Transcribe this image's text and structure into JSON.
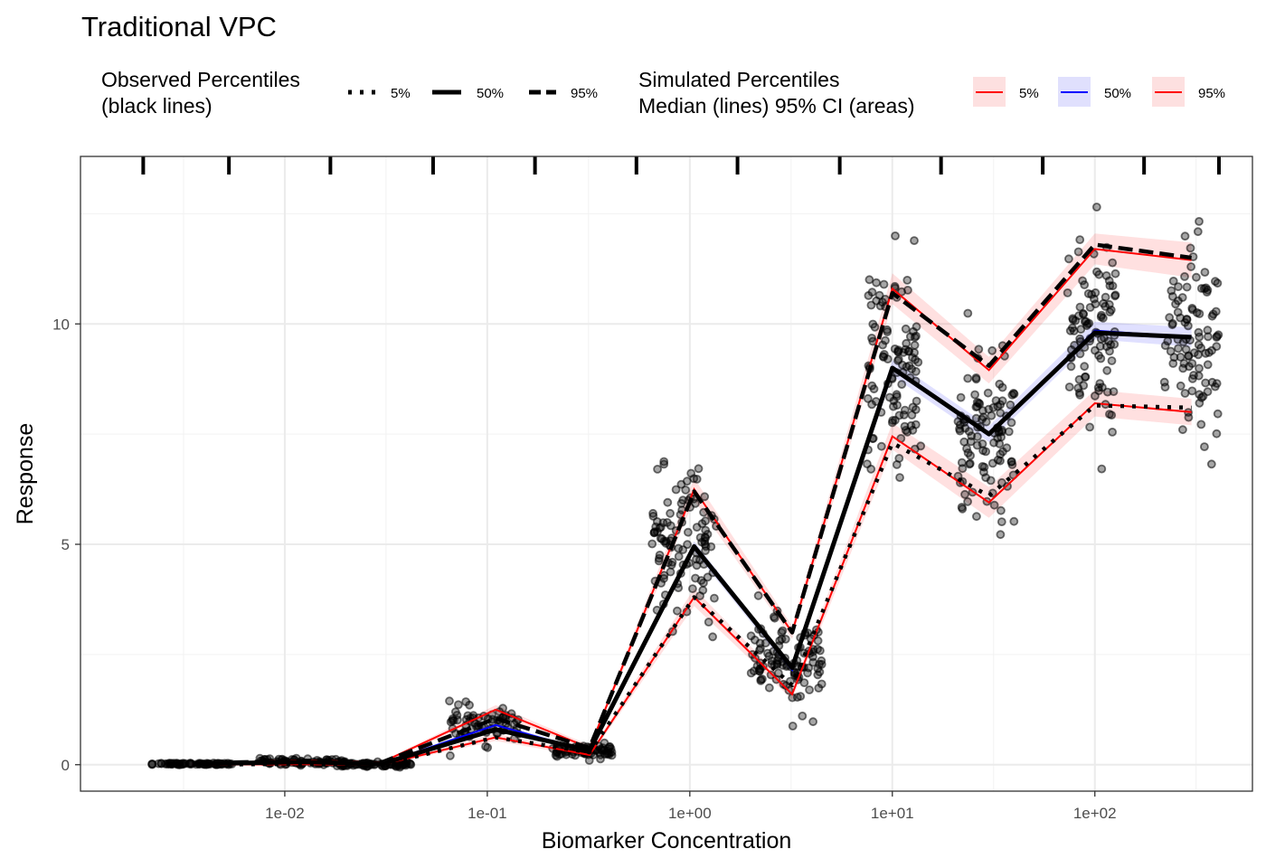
{
  "title": "Traditional VPC",
  "legend": {
    "observed": {
      "title_line1": "Observed Percentiles",
      "title_line2": "(black lines)",
      "keys": [
        "5%",
        "50%",
        "95%"
      ]
    },
    "simulated": {
      "title_line1": "Simulated Percentiles",
      "title_line2": "Median (lines) 95% CI (areas)",
      "keys": [
        "5%",
        "50%",
        "95%"
      ],
      "line_colors": [
        "#ff0000",
        "#0000ff",
        "#ff0000"
      ],
      "fill_colors": [
        "#fde0e0",
        "#e0e0fd",
        "#fde0e0"
      ]
    }
  },
  "chart_data": {
    "type": "line",
    "x_scale": "log10",
    "xlabel": "Biomarker Concentration",
    "ylabel": "Response",
    "x_ticks": [
      0.01,
      0.1,
      1,
      10,
      100
    ],
    "x_tick_labels": [
      "1e-02",
      "1e-01",
      "1e+00",
      "1e+01",
      "1e+02"
    ],
    "y_ticks": [
      0,
      5,
      10
    ],
    "y_tick_labels": [
      "0",
      "5",
      "10"
    ],
    "xlim": [
      0.00098,
      600
    ],
    "ylim": [
      -0.6,
      13.8
    ],
    "grid": true,
    "bin_boundaries": [
      0.002,
      0.0053,
      0.0168,
      0.054,
      0.172,
      0.545,
      1.72,
      5.5,
      17.4,
      55.3,
      175,
      410
    ],
    "bin_centers": [
      0.0035,
      0.0125,
      0.03,
      0.11,
      0.32,
      1.05,
      3.2,
      10,
      30,
      100,
      300
    ],
    "observed": [
      {
        "name": "5%",
        "values": [
          0.0,
          0.02,
          0.0,
          0.62,
          0.28,
          3.8,
          1.8,
          7.3,
          6.1,
          8.15,
          8.1
        ]
      },
      {
        "name": "50%",
        "values": [
          0.02,
          0.06,
          0.02,
          0.8,
          0.33,
          4.95,
          2.2,
          9.0,
          7.5,
          9.8,
          9.7
        ]
      },
      {
        "name": "95%",
        "values": [
          0.03,
          0.09,
          0.05,
          1.05,
          0.38,
          6.2,
          3.0,
          10.7,
          9.05,
          11.8,
          11.5
        ]
      }
    ],
    "simulated_median": [
      {
        "name": "5%",
        "values": [
          0.0,
          0.01,
          0.0,
          0.62,
          0.22,
          3.8,
          1.6,
          7.45,
          5.95,
          8.2,
          8.0
        ]
      },
      {
        "name": "50%",
        "values": [
          0.02,
          0.06,
          0.02,
          0.9,
          0.3,
          4.95,
          2.15,
          9.0,
          7.5,
          9.85,
          9.7
        ]
      },
      {
        "name": "95%",
        "values": [
          0.03,
          0.1,
          0.05,
          1.25,
          0.38,
          6.25,
          3.0,
          10.8,
          8.95,
          11.7,
          11.45
        ]
      }
    ],
    "simulated_ci_halfwidth": [
      [
        0.02,
        0.02,
        0.02,
        0.08,
        0.05,
        0.2,
        0.12,
        0.3,
        0.35,
        0.3,
        0.3
      ],
      [
        0.01,
        0.01,
        0.01,
        0.05,
        0.03,
        0.12,
        0.08,
        0.18,
        0.18,
        0.2,
        0.22
      ],
      [
        0.02,
        0.02,
        0.02,
        0.1,
        0.06,
        0.25,
        0.15,
        0.35,
        0.3,
        0.35,
        0.4
      ]
    ],
    "observations": {
      "groups": [
        {
          "x_range": [
            0.0022,
            0.0055
          ],
          "y_mean": 0.02,
          "y_sd": 0.01,
          "n": 70
        },
        {
          "x_range": [
            0.0075,
            0.02
          ],
          "y_mean": 0.06,
          "y_sd": 0.04,
          "n": 80
        },
        {
          "x_range": [
            0.019,
            0.042
          ],
          "y_mean": 0.01,
          "y_sd": 0.03,
          "n": 70
        },
        {
          "x_range": [
            0.065,
            0.15
          ],
          "y_mean": 0.9,
          "y_sd": 0.2,
          "n": 70
        },
        {
          "x_range": [
            0.21,
            0.42
          ],
          "y_mean": 0.3,
          "y_sd": 0.07,
          "n": 70
        },
        {
          "x_range": [
            0.65,
            1.35
          ],
          "y_mean": 4.95,
          "y_sd": 0.8,
          "n": 110
        },
        {
          "x_range": [
            2.0,
            4.5
          ],
          "y_mean": 2.3,
          "y_sd": 0.5,
          "n": 110
        },
        {
          "x_range": [
            7.5,
            14
          ],
          "y_mean": 9.0,
          "y_sd": 1.2,
          "n": 110
        },
        {
          "x_range": [
            21,
            40
          ],
          "y_mean": 7.4,
          "y_sd": 0.9,
          "n": 110
        },
        {
          "x_range": [
            72,
            128
          ],
          "y_mean": 9.85,
          "y_sd": 1.1,
          "n": 100
        },
        {
          "x_range": [
            220,
            410
          ],
          "y_mean": 9.7,
          "y_sd": 1.1,
          "n": 100
        }
      ]
    }
  }
}
